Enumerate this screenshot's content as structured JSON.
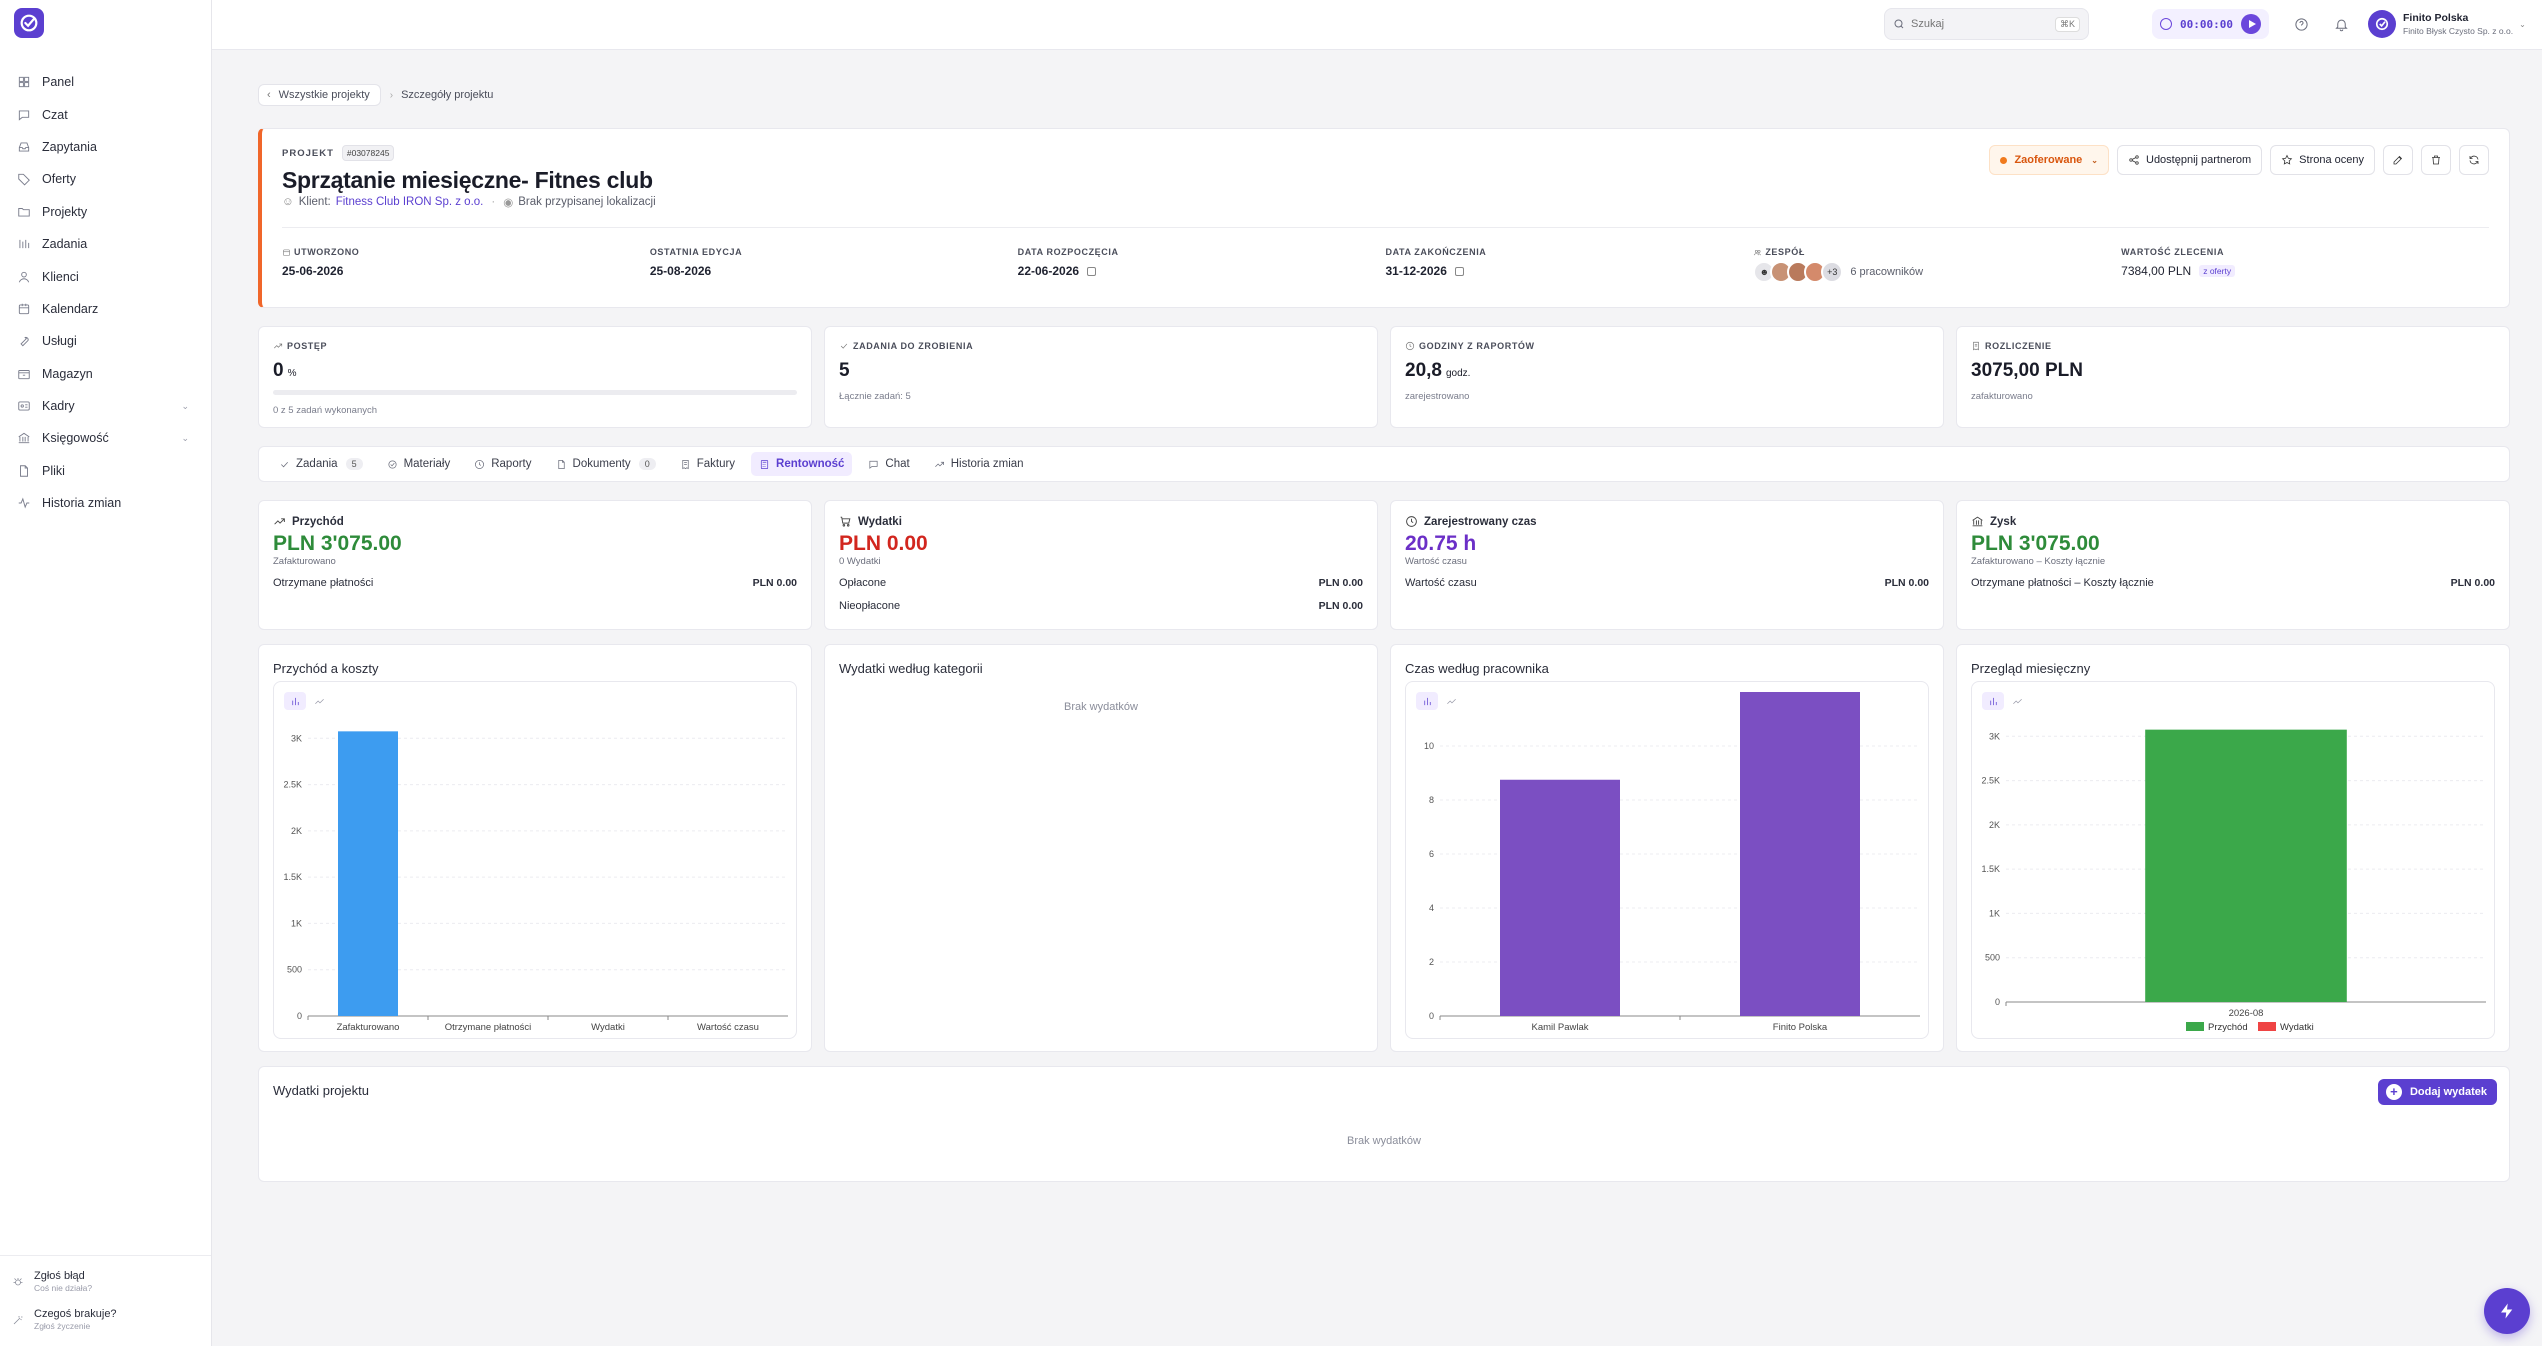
{
  "colors": {
    "accent": "#5b3fd0",
    "revenue": "#2e8b3a",
    "expense": "#d2261e",
    "time": "#6b2fc7",
    "bar_blue": "#3d9cf0",
    "bar_purple": "#7b4fc2",
    "bar_green": "#3ba84a",
    "bar_red": "#ef4444",
    "status_orange": "#f07a1d"
  },
  "sidebar": {
    "items": [
      {
        "label": "Panel",
        "icon": "grid-icon"
      },
      {
        "label": "Czat",
        "icon": "chat-icon"
      },
      {
        "label": "Zapytania",
        "icon": "inbox-icon"
      },
      {
        "label": "Oferty",
        "icon": "tag-icon"
      },
      {
        "label": "Projekty",
        "icon": "folder-icon"
      },
      {
        "label": "Zadania",
        "icon": "tasks-icon"
      },
      {
        "label": "Klienci",
        "icon": "users-icon"
      },
      {
        "label": "Kalendarz",
        "icon": "calendar-icon"
      },
      {
        "label": "Usługi",
        "icon": "wrench-icon"
      },
      {
        "label": "Magazyn",
        "icon": "box-icon"
      },
      {
        "label": "Kadry",
        "icon": "id-card-icon"
      },
      {
        "label": "Księgowość",
        "icon": "bank-icon"
      },
      {
        "label": "Pliki",
        "icon": "file-icon"
      },
      {
        "label": "Historia zmian",
        "icon": "activity-icon"
      }
    ],
    "bottom": [
      {
        "title": "Zgłoś błąd",
        "subtitle": "Coś nie działa?"
      },
      {
        "title": "Czegoś brakuje?",
        "subtitle": "Zgłoś życzenie"
      }
    ]
  },
  "topbar": {
    "search_placeholder": "Szukaj",
    "search_shortcut": "⌘K",
    "timer": "00:00:00",
    "user_name": "Finito Polska",
    "user_company": "Finito Błysk Czysto Sp. z o.o."
  },
  "breadcrumb": {
    "back": "Wszystkie projekty",
    "current": "Szczegóły projektu"
  },
  "project": {
    "label": "PROJEKT",
    "id": "#03078245",
    "title": "Sprzątanie miesięczne- Fitnes club",
    "client_label": "Klient:",
    "client": "Fitness Club IRON Sp. z o.o.",
    "location": "Brak przypisanej lokalizacji",
    "status": "Zaoferowane",
    "share_label": "Udostępnij partnerom",
    "rating_label": "Strona oceny",
    "facts": {
      "created_label": "UTWORZONO",
      "created": "25-06-2026",
      "edited_label": "OSTATNIA EDYCJA",
      "edited": "25-08-2026",
      "start_label": "DATA ROZPOCZĘCIA",
      "start": "22-06-2026",
      "end_label": "DATA ZAKOŃCZENIA",
      "end": "31-12-2026",
      "team_label": "ZESPÓŁ",
      "team_more": "+3",
      "team_count": "6 pracowników",
      "value_label": "WARTOŚĆ ZLECENIA",
      "value": "7384,00 PLN",
      "value_tag": "z oferty"
    }
  },
  "stats": {
    "progress": {
      "label": "POSTĘP",
      "value": "0",
      "unit": "%",
      "sub": "0 z 5 zadań wykonanych",
      "fraction": 0
    },
    "todo": {
      "label": "ZADANIA DO ZROBIENIA",
      "value": "5",
      "sub": "Łącznie zadań: 5"
    },
    "hours": {
      "label": "GODZINY Z RAPORTÓW",
      "value": "20,8",
      "unit": "godz.",
      "sub": "zarejestrowano"
    },
    "billing": {
      "label": "ROZLICZENIE",
      "value": "3075,00 PLN",
      "sub": "zafakturowano"
    }
  },
  "tabs": [
    {
      "label": "Zadania",
      "badge": "5",
      "icon": "check-icon"
    },
    {
      "label": "Materiały",
      "icon": "material-icon"
    },
    {
      "label": "Raporty",
      "icon": "clock-icon"
    },
    {
      "label": "Dokumenty",
      "badge": "0",
      "icon": "document-icon"
    },
    {
      "label": "Faktury",
      "icon": "receipt-icon"
    },
    {
      "label": "Rentowność",
      "icon": "calculator-icon",
      "active": true
    },
    {
      "label": "Chat",
      "icon": "chat-icon"
    },
    {
      "label": "Historia zmian",
      "icon": "trend-icon"
    }
  ],
  "summary": {
    "revenue": {
      "title": "Przychód",
      "amount": "PLN 3'075.00",
      "caption": "Zafakturowano",
      "rows": [
        {
          "k": "Otrzymane płatności",
          "v": "PLN 0.00"
        }
      ]
    },
    "expenses": {
      "title": "Wydatki",
      "amount": "PLN 0.00",
      "caption": "0 Wydatki",
      "rows": [
        {
          "k": "Opłacone",
          "v": "PLN 0.00"
        },
        {
          "k": "Nieopłacone",
          "v": "PLN 0.00"
        }
      ]
    },
    "time": {
      "title": "Zarejestrowany czas",
      "amount": "20.75 h",
      "caption": "Wartość czasu",
      "rows": [
        {
          "k": "Wartość czasu",
          "v": "PLN 0.00"
        }
      ]
    },
    "profit": {
      "title": "Zysk",
      "amount": "PLN 3'075.00",
      "caption": "Zafakturowano – Koszty łącznie",
      "rows": [
        {
          "k": "Otrzymane płatności – Koszty łącznie",
          "v": "PLN 0.00"
        }
      ]
    }
  },
  "chart_titles": {
    "revenue_costs": "Przychód a koszty",
    "expense_categories": "Wydatki według kategorii",
    "time_by_worker": "Czas według pracownika",
    "monthly": "Przegląd miesięczny"
  },
  "no_expenses": "Brak wydatków",
  "chart_data": [
    {
      "type": "bar",
      "title": "Przychód a koszty",
      "categories": [
        "Zafakturowano",
        "Otrzymane płatności",
        "Wydatki",
        "Wartość czasu"
      ],
      "values": [
        3075,
        0,
        0,
        0
      ],
      "ylim": [
        0,
        3500
      ],
      "yticks": [
        0,
        500,
        1000,
        1500,
        2000,
        2500,
        3000
      ],
      "ytick_labels": [
        "0",
        "500",
        "1K",
        "1.5K",
        "2K",
        "2.5K",
        "3K"
      ],
      "grid": true
    },
    {
      "type": "bar",
      "title": "Czas według pracownika",
      "categories": [
        "Kamil Pawlak",
        "Finito Polska"
      ],
      "values": [
        8.75,
        12
      ],
      "ylim": [
        0,
        12
      ],
      "yticks": [
        0,
        2,
        4,
        6,
        8,
        10
      ],
      "ytick_labels": [
        "0",
        "2",
        "4",
        "6",
        "8",
        "10"
      ],
      "grid": true
    },
    {
      "type": "bar",
      "title": "Przegląd miesięczny",
      "categories": [
        "2026-08"
      ],
      "series": [
        {
          "name": "Przychód",
          "values": [
            3075
          ]
        },
        {
          "name": "Wydatki",
          "values": [
            0
          ]
        }
      ],
      "ylim": [
        0,
        3500
      ],
      "yticks": [
        0,
        500,
        1000,
        1500,
        2000,
        2500,
        3000
      ],
      "ytick_labels": [
        "0",
        "500",
        "1K",
        "1.5K",
        "2K",
        "2.5K",
        "3K"
      ],
      "legend": "bottom",
      "grid": true
    }
  ],
  "expenses_section": {
    "title": "Wydatki projektu",
    "add_label": "Dodaj wydatek"
  }
}
